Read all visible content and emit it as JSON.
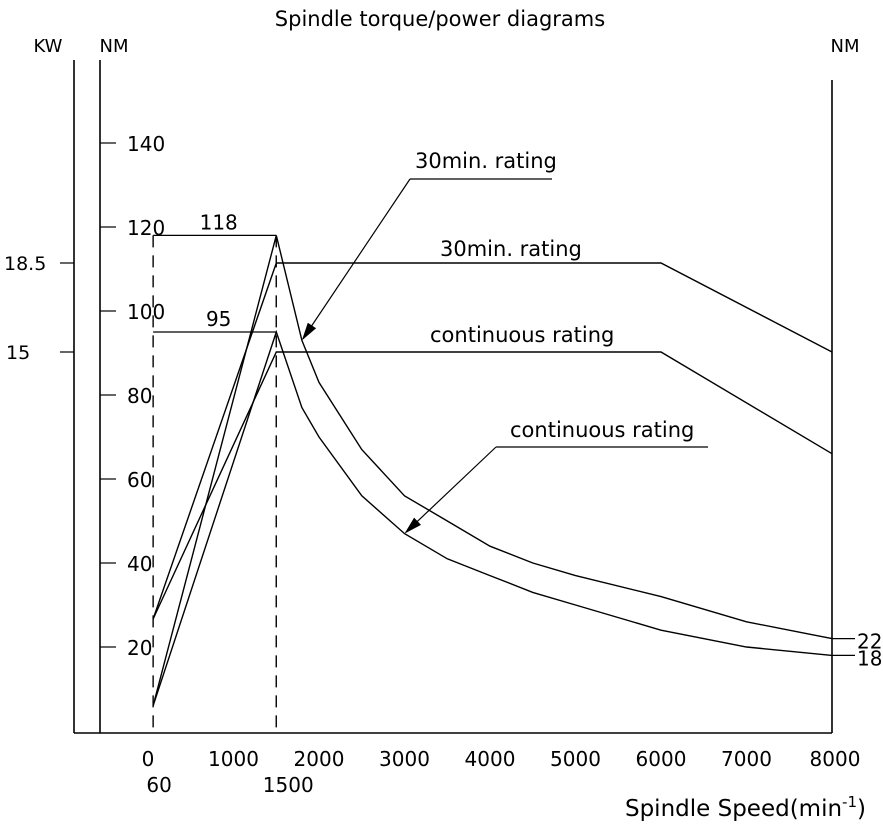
{
  "chart_data": {
    "type": "line",
    "title": "Spindle torque/power diagrams",
    "xlabel": "Spindle Speed(min",
    "xlabel_sup": "-1",
    "xlabel_close": ")",
    "x_ticks": [
      "0",
      "1000",
      "2000",
      "3000",
      "4000",
      "5000",
      "6000",
      "7000",
      "8000"
    ],
    "x_special_ticks": [
      "60",
      "1500"
    ],
    "xlim": [
      -500,
      8000
    ],
    "left_torque_axis": {
      "unit": "NM",
      "ticks": [
        "20",
        "40",
        "60",
        "80",
        "100",
        "120",
        "140"
      ],
      "ylim": [
        0,
        150
      ]
    },
    "kw_axis": {
      "unit": "KW",
      "ticks": [
        "18.5",
        "15"
      ]
    },
    "right_axis": {
      "unit": "NM"
    },
    "series": [
      {
        "name": "30min. rating",
        "quantity": "torque",
        "x": [
          60,
          1500,
          1800,
          2000,
          2500,
          3000,
          3500,
          4000,
          4500,
          5000,
          6000,
          7000,
          8000
        ],
        "y": [
          6,
          118,
          93,
          83,
          67,
          56,
          50,
          44,
          40,
          37,
          32,
          26,
          22
        ]
      },
      {
        "name": "continuous rating",
        "quantity": "torque",
        "x": [
          60,
          1500,
          1800,
          2000,
          2500,
          3000,
          3500,
          4000,
          4500,
          5000,
          6000,
          7000,
          8000
        ],
        "y": [
          6,
          95,
          77,
          70,
          56,
          47,
          41,
          37,
          33,
          30,
          24,
          20,
          18
        ]
      },
      {
        "name": "30min. rating",
        "quantity": "power",
        "x": [
          60,
          1500,
          6000,
          8000
        ],
        "y": [
          4.5,
          18.5,
          18.5,
          15
        ]
      },
      {
        "name": "continuous rating",
        "quantity": "power",
        "x": [
          60,
          1500,
          6000,
          8000
        ],
        "y": [
          4.5,
          15,
          15,
          11
        ]
      }
    ],
    "annotations": [
      {
        "text": "118",
        "at_rpm": 1500,
        "value": 118
      },
      {
        "text": "95",
        "at_rpm": 1500,
        "value": 95
      },
      {
        "text": "22",
        "at_rpm": 8000,
        "value": 22
      },
      {
        "text": "18",
        "at_rpm": 8000,
        "value": 18
      }
    ],
    "callouts": [
      {
        "text": "30min. rating",
        "target_series": 0
      },
      {
        "text": "30min. rating",
        "target_series": 2
      },
      {
        "text": "continuous rating",
        "target_series": 3
      },
      {
        "text": "continuous rating",
        "target_series": 1
      }
    ],
    "grid": false,
    "legend": "none"
  }
}
